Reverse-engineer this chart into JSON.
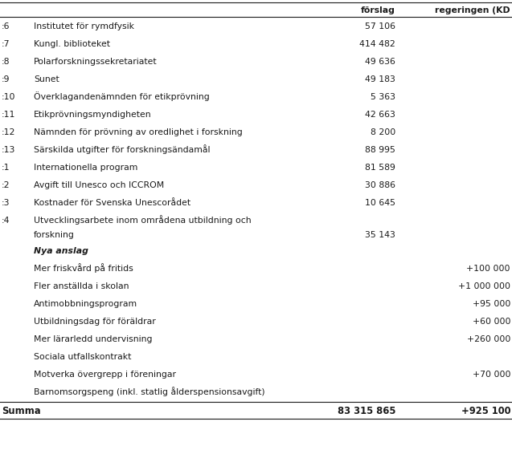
{
  "headers": [
    "förslag",
    "regeringen (KD"
  ],
  "rows": [
    [
      ":6",
      "Institutet för rymdfysik",
      "57 106",
      ""
    ],
    [
      ":7",
      "Kungl. biblioteket",
      "414 482",
      ""
    ],
    [
      ":8",
      "Polarforskningssekretariatet",
      "49 636",
      ""
    ],
    [
      ":9",
      "Sunet",
      "49 183",
      ""
    ],
    [
      ":10",
      "Överklagandenämnden för etikprövning",
      "5 363",
      ""
    ],
    [
      ":11",
      "Etikprövningsmyndigheten",
      "42 663",
      ""
    ],
    [
      ":12",
      "Nämnden för prövning av oredlighet i forskning",
      "8 200",
      ""
    ],
    [
      ":13",
      "Särskilda utgifter för forskningsändamål",
      "88 995",
      ""
    ],
    [
      ":1",
      "Internationella program",
      "81 589",
      ""
    ],
    [
      ":2",
      "Avgift till Unesco och ICCROM",
      "30 886",
      ""
    ],
    [
      ":3",
      "Kostnader för Svenska Unescorådet",
      "10 645",
      ""
    ],
    [
      ":4",
      "Utvecklingsarbete inom områdena utbildning och\nforskning",
      "35 143",
      ""
    ],
    [
      "",
      "Nya anslag",
      "",
      ""
    ],
    [
      "",
      "Mer friskvård på fritids",
      "",
      "+100 000"
    ],
    [
      "",
      "Fler anställda i skolan",
      "",
      "+1 000 000"
    ],
    [
      "",
      "Antimobbningsprogram",
      "",
      "+95 000"
    ],
    [
      "",
      "Utbildningsdag för föräldrar",
      "",
      "+60 000"
    ],
    [
      "",
      "Mer lärarledd undervisning",
      "",
      "+260 000"
    ],
    [
      "",
      "Sociala utfallskontrakt",
      "",
      ""
    ],
    [
      "",
      "Motverka övergrepp i föreningar",
      "",
      "+70 000"
    ],
    [
      "",
      "Barnomsorgspeng (inkl. statlig ålderspensionsavgift)",
      "",
      ""
    ]
  ],
  "footer": [
    "Summa",
    "83 315 865",
    "+925 100"
  ],
  "bg_color": "#ffffff",
  "text_color": "#1a1a1a",
  "line_color": "#1a1a1a",
  "font_size": 7.8,
  "header_font_size": 7.8
}
